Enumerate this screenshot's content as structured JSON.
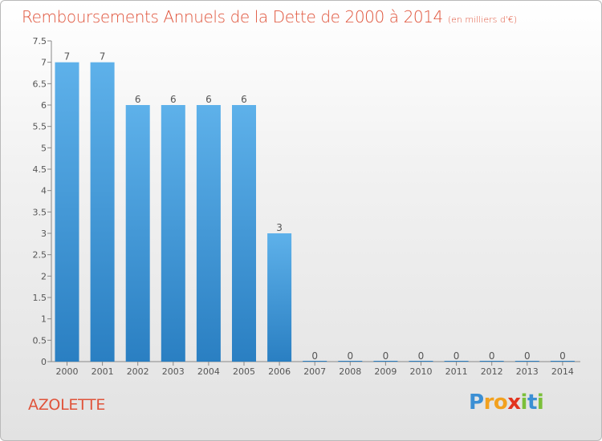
{
  "title": "Remboursements Annuels de la Dette de 2000 à 2014",
  "unit_note": "(en milliers d'€)",
  "commune": "AZOLETTE",
  "logo": {
    "text": "Proxiti",
    "letters": [
      "P",
      "r",
      "o",
      "x",
      "i",
      "t",
      "i"
    ]
  },
  "colors": {
    "title": "#e0533a",
    "bar_light": "#5eb1ea",
    "bar_dark": "#2a7fc2",
    "axis": "#888888"
  },
  "chart_data": {
    "type": "bar",
    "title": "Remboursements Annuels de la Dette de 2000 à 2014",
    "xlabel": "",
    "ylabel": "(en milliers d'€)",
    "categories": [
      "2000",
      "2001",
      "2002",
      "2003",
      "2004",
      "2005",
      "2006",
      "2007",
      "2008",
      "2009",
      "2010",
      "2011",
      "2012",
      "2013",
      "2014"
    ],
    "values": [
      7,
      7,
      6,
      6,
      6,
      6,
      3,
      0,
      0,
      0,
      0,
      0,
      0,
      0,
      0
    ],
    "data_labels": [
      "7",
      "7",
      "6",
      "6",
      "6",
      "6",
      "3",
      "0",
      "0",
      "0",
      "0",
      "0",
      "0",
      "0",
      "0"
    ],
    "ylim": [
      0,
      7.5
    ],
    "y_ticks": [
      0,
      0.5,
      1,
      1.5,
      2,
      2.5,
      3,
      3.5,
      4,
      4.5,
      5,
      5.5,
      6,
      6.5,
      7,
      7.5
    ],
    "y_tick_labels": [
      "0",
      "0.5",
      "1",
      "1.5",
      "2",
      "2.5",
      "3",
      "3.5",
      "4",
      "4.5",
      "5",
      "5.5",
      "6",
      "6.5",
      "7",
      "7.5"
    ],
    "grid": false
  }
}
